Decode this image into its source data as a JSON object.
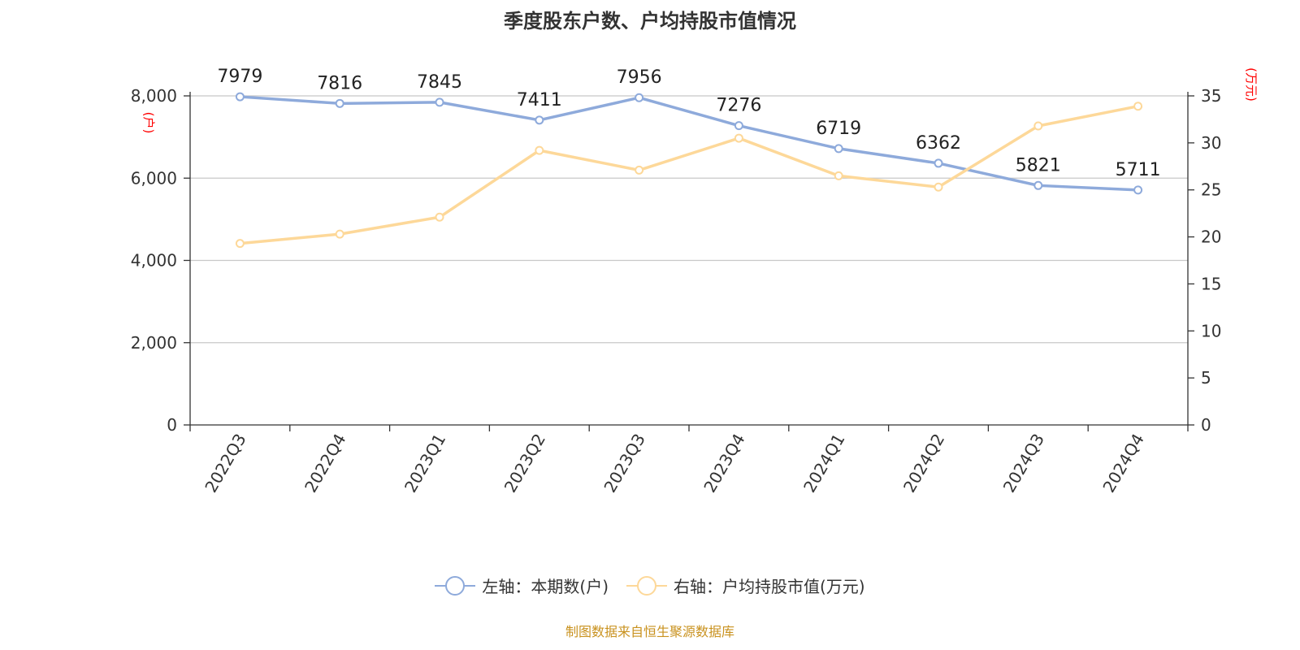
{
  "chart_data": {
    "type": "line",
    "title": "季度股东户数、户均持股市值情况",
    "categories": [
      "2022Q3",
      "2022Q4",
      "2023Q1",
      "2023Q2",
      "2023Q3",
      "2023Q4",
      "2024Q1",
      "2024Q2",
      "2024Q3",
      "2024Q4"
    ],
    "series": [
      {
        "name": "左轴：本期数(户)",
        "axis": "left",
        "color": "#8eaadb",
        "values": [
          7979,
          7816,
          7845,
          7411,
          7956,
          7276,
          6719,
          6362,
          5821,
          5711
        ],
        "data_labels": [
          "7979",
          "7816",
          "7845",
          "7411",
          "7956",
          "7276",
          "6719",
          "6362",
          "5821",
          "5711"
        ]
      },
      {
        "name": "右轴：户均持股市值(万元)",
        "axis": "right",
        "color": "#fdd899",
        "values": [
          19.3,
          20.3,
          22.1,
          29.2,
          27.1,
          30.5,
          26.5,
          25.3,
          31.8,
          33.9
        ]
      }
    ],
    "y_left": {
      "unit": "(户)",
      "ylim": [
        0,
        8000
      ],
      "ticks": [
        0,
        2000,
        4000,
        6000,
        8000
      ],
      "tick_labels": [
        "0",
        "2,000",
        "4,000",
        "6,000",
        "8,000"
      ]
    },
    "y_right": {
      "unit": "(万元)",
      "ylim": [
        0,
        35
      ],
      "ticks": [
        0,
        5,
        10,
        15,
        20,
        25,
        30,
        35
      ],
      "tick_labels": [
        "0",
        "5",
        "10",
        "15",
        "20",
        "25",
        "30",
        "35"
      ]
    },
    "grid": true,
    "legend_position": "bottom",
    "unit_color": "#ff0000"
  },
  "legend": {
    "left_label": "左轴：本期数(户)",
    "right_label": "右轴：户均持股市值(万元)"
  },
  "source": "制图数据来自恒生聚源数据库"
}
